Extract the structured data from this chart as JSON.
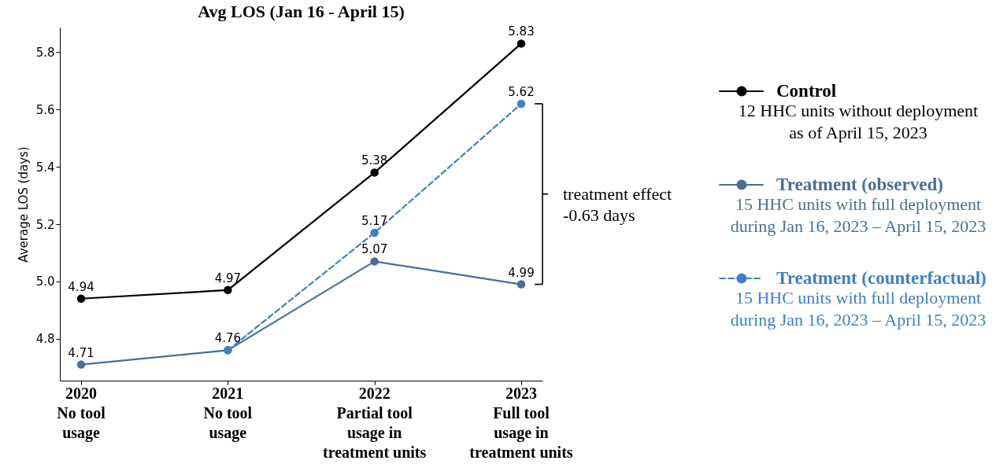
{
  "chart_data": {
    "type": "line",
    "title": "Avg LOS (Jan 16 - April 15)",
    "ylabel": "Average LOS (days)",
    "categories": [
      "2020\nNo tool\nusage",
      "2021\nNo tool\nusage",
      "2022\nPartial tool\nusage in\ntreatment units",
      "2023\nFull tool\nusage in\ntreatment units"
    ],
    "series": [
      {
        "name": "Control\n12 HHC units without deployment\nas of April 15, 2023",
        "color": "#000000",
        "values": [
          4.94,
          4.97,
          5.38,
          5.83
        ],
        "value_labels": [
          "4.94",
          "4.97",
          "5.38",
          "5.83"
        ]
      },
      {
        "name": "Treatment (observed)\n15 HHC units with full deployment\nduring Jan 16, 2023 – April 15, 2023",
        "color": "#4a6f96",
        "values": [
          4.71,
          4.76,
          5.07,
          4.99
        ],
        "value_labels": [
          "4.71",
          "4.76",
          "5.07",
          "4.99"
        ]
      },
      {
        "name": "Treatment (counterfactual)\n15 HHC units with full deployment\nduring Jan 16, 2023 – April 15, 2023",
        "color": "#3f80c4",
        "values": [
          null,
          4.76,
          5.17,
          5.62
        ],
        "value_labels": [
          null,
          null,
          "5.17",
          "5.62"
        ],
        "line_style": "dashed"
      }
    ],
    "ylim": [
      4.654,
      5.886
    ],
    "yticks": [
      4.8,
      {
        "value": 5.0,
        "label": "5.0"
      },
      5.2,
      5.4,
      5.6,
      5.8
    ],
    "annotations": [
      "treatment effect\n-0.63 days"
    ],
    "grid": false,
    "legend": "right",
    "marker": "circle",
    "line_style": "solid"
  }
}
